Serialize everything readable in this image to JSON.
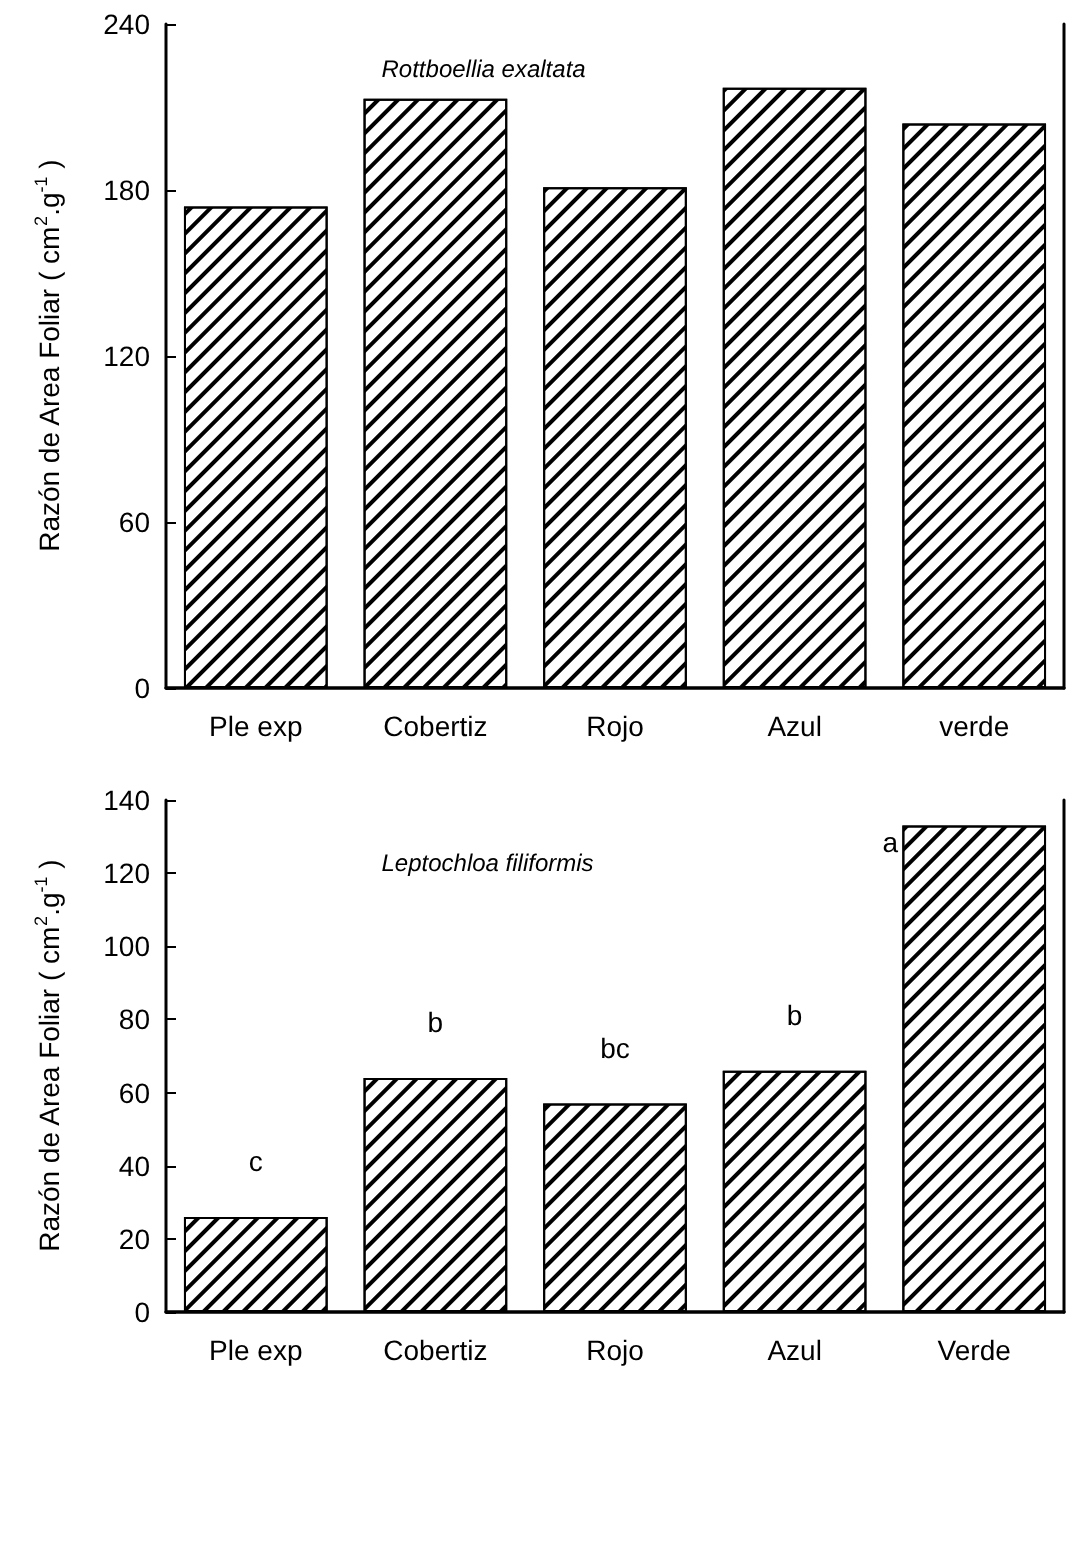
{
  "chart_data": [
    {
      "type": "bar",
      "ylabel": "Razón de Area Foliar ( cm$^{2}$.g$^{-1}$ )",
      "categories": [
        "Ple exp",
        "Cobertiz",
        "Rojo",
        "Azul",
        "verde"
      ],
      "series": [
        {
          "color": "#ffffff",
          "values": [
            174,
            213,
            181,
            217,
            204
          ]
        }
      ],
      "ylim": [
        0,
        240
      ],
      "yticks": [
        0,
        60,
        120,
        180,
        240
      ],
      "annotations": [
        "Rottboellia exaltata"
      ]
    },
    {
      "type": "bar",
      "ylabel": "Razón de Area Foliar ( cm$^{2}$.g$^{-1}$ )",
      "categories": [
        "Ple exp",
        "Cobertiz",
        "Rojo",
        "Azul",
        "Verde"
      ],
      "series": [
        {
          "color": "#ffffff",
          "values": [
            26,
            64,
            57,
            66,
            133
          ]
        }
      ],
      "ylim": [
        0,
        140
      ],
      "yticks": [
        0,
        20,
        40,
        60,
        80,
        100,
        120,
        140
      ],
      "annotations": [
        "Leptochloa filiformis",
        {
          "text": "c",
          "x": "Ple exp",
          "y": 26
        },
        {
          "text": "b",
          "x": "Cobertiz",
          "y": 64
        },
        {
          "text": "bc",
          "x": "Rojo",
          "y": 57
        },
        {
          "text": "b",
          "x": "Azul",
          "y": 66
        },
        {
          "text": "a",
          "x": "Verde",
          "y": 133
        }
      ]
    }
  ]
}
